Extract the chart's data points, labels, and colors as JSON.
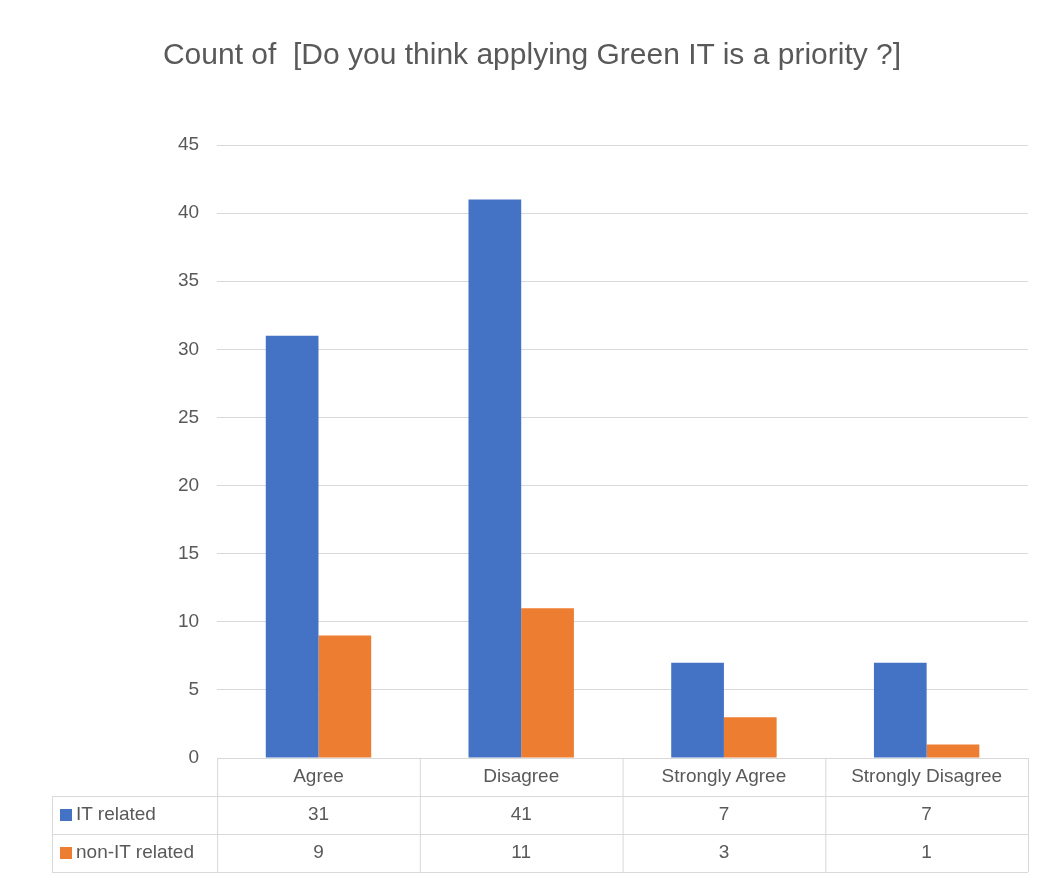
{
  "chart_data": {
    "type": "bar",
    "title": "Count of  [Do you think applying Green IT is a priority ?]",
    "categories": [
      "Agree",
      "Disagree",
      "Strongly Agree",
      "Strongly Disagree"
    ],
    "series": [
      {
        "name": "IT related",
        "color": "#4472c4",
        "values": [
          31,
          41,
          7,
          7
        ]
      },
      {
        "name": "non-IT related",
        "color": "#ed7d31",
        "values": [
          9,
          11,
          3,
          1
        ]
      }
    ],
    "ylim": [
      0,
      45
    ],
    "yticks": [
      0,
      5,
      10,
      15,
      20,
      25,
      30,
      35,
      40,
      45
    ],
    "grid": "y",
    "legend": "bottom",
    "data_labels": true
  }
}
